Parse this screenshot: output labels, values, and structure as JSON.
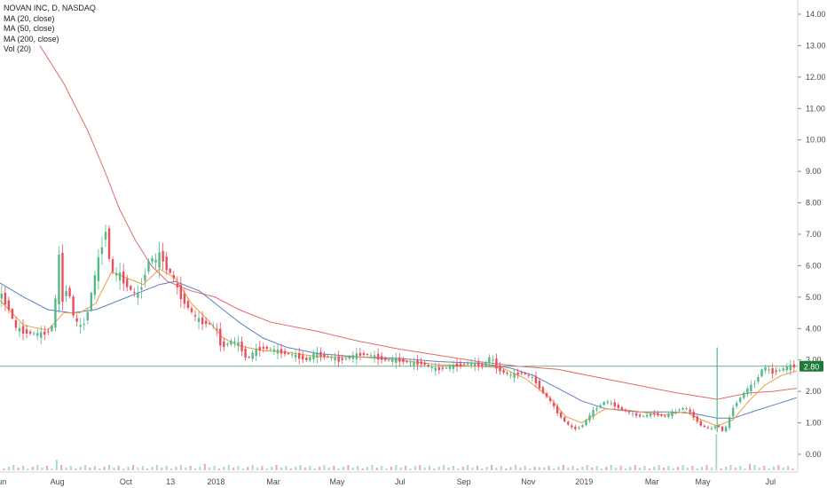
{
  "chart_data": {
    "type": "candlestick",
    "title": "NOVAN INC, D, NASDAQ",
    "indicators": [
      "MA (20, close)",
      "MA (50, close)",
      "MA (200, close)",
      "Vol (20)"
    ],
    "price_axis_ticks": [
      "14.00",
      "13.00",
      "12.00",
      "11.00",
      "10.00",
      "9.00",
      "8.00",
      "7.00",
      "6.00",
      "5.00",
      "4.00",
      "3.00",
      "2.00",
      "1.00",
      "0.00"
    ],
    "y_range": [
      0,
      14
    ],
    "time_axis_labels": [
      {
        "label": "Jun",
        "pos": 0.0
      },
      {
        "label": "Aug",
        "pos": 0.072
      },
      {
        "label": "Oct",
        "pos": 0.158
      },
      {
        "label": "13",
        "pos": 0.214
      },
      {
        "label": "2018",
        "pos": 0.271
      },
      {
        "label": "Mar",
        "pos": 0.343
      },
      {
        "label": "May",
        "pos": 0.423
      },
      {
        "label": "Jul",
        "pos": 0.502
      },
      {
        "label": "Sep",
        "pos": 0.582
      },
      {
        "label": "Nov",
        "pos": 0.663
      },
      {
        "label": "2019",
        "pos": 0.733
      },
      {
        "label": "Mar",
        "pos": 0.818
      },
      {
        "label": "May",
        "pos": 0.882
      },
      {
        "label": "Jul",
        "pos": 0.967
      }
    ],
    "last_price_label": "2.80",
    "last_price": 2.8,
    "colors": {
      "up": "#53b987",
      "down": "#eb4d5c",
      "ma20": "#f09a3e",
      "ma50": "#5f7fc4",
      "ma200": "#e06a6a",
      "last_price_bg": "#1f7a3a",
      "grid": "#e0e3eb",
      "text": "#4a4a4a"
    },
    "price_path": [
      [
        0.0,
        5.1
      ],
      [
        0.01,
        4.7
      ],
      [
        0.02,
        4.0
      ],
      [
        0.03,
        3.9
      ],
      [
        0.04,
        3.85
      ],
      [
        0.05,
        3.8
      ],
      [
        0.06,
        3.9
      ],
      [
        0.068,
        4.2
      ],
      [
        0.073,
        6.6
      ],
      [
        0.078,
        4.9
      ],
      [
        0.085,
        5.4
      ],
      [
        0.092,
        4.4
      ],
      [
        0.1,
        4.0
      ],
      [
        0.108,
        4.3
      ],
      [
        0.115,
        5.2
      ],
      [
        0.122,
        6.0
      ],
      [
        0.128,
        6.7
      ],
      [
        0.133,
        7.2
      ],
      [
        0.138,
        6.0
      ],
      [
        0.143,
        5.7
      ],
      [
        0.15,
        5.7
      ],
      [
        0.158,
        5.4
      ],
      [
        0.165,
        5.2
      ],
      [
        0.172,
        5.0
      ],
      [
        0.18,
        5.6
      ],
      [
        0.188,
        6.3
      ],
      [
        0.195,
        6.1
      ],
      [
        0.202,
        6.4
      ],
      [
        0.209,
        5.9
      ],
      [
        0.216,
        5.7
      ],
      [
        0.223,
        5.2
      ],
      [
        0.23,
        4.9
      ],
      [
        0.238,
        4.6
      ],
      [
        0.246,
        4.3
      ],
      [
        0.254,
        4.2
      ],
      [
        0.262,
        4.15
      ],
      [
        0.27,
        4.05
      ],
      [
        0.278,
        3.4
      ],
      [
        0.29,
        3.6
      ],
      [
        0.3,
        3.5
      ],
      [
        0.31,
        3.0
      ],
      [
        0.32,
        3.3
      ],
      [
        0.33,
        3.4
      ],
      [
        0.345,
        3.3
      ],
      [
        0.36,
        3.2
      ],
      [
        0.375,
        3.1
      ],
      [
        0.385,
        3.0
      ],
      [
        0.395,
        3.2
      ],
      [
        0.41,
        3.1
      ],
      [
        0.425,
        3.0
      ],
      [
        0.44,
        3.1
      ],
      [
        0.455,
        3.2
      ],
      [
        0.47,
        3.1
      ],
      [
        0.485,
        3.0
      ],
      [
        0.5,
        3.0
      ],
      [
        0.515,
        2.9
      ],
      [
        0.53,
        2.9
      ],
      [
        0.545,
        2.7
      ],
      [
        0.56,
        2.75
      ],
      [
        0.575,
        2.85
      ],
      [
        0.59,
        2.9
      ],
      [
        0.605,
        2.8
      ],
      [
        0.615,
        3.1
      ],
      [
        0.625,
        2.7
      ],
      [
        0.64,
        2.5
      ],
      [
        0.655,
        2.6
      ],
      [
        0.67,
        2.4
      ],
      [
        0.68,
        2.0
      ],
      [
        0.69,
        1.7
      ],
      [
        0.7,
        1.3
      ],
      [
        0.71,
        1.0
      ],
      [
        0.72,
        0.8
      ],
      [
        0.73,
        0.9
      ],
      [
        0.745,
        1.4
      ],
      [
        0.76,
        1.7
      ],
      [
        0.775,
        1.5
      ],
      [
        0.79,
        1.3
      ],
      [
        0.805,
        1.2
      ],
      [
        0.82,
        1.3
      ],
      [
        0.835,
        1.2
      ],
      [
        0.85,
        1.4
      ],
      [
        0.86,
        1.5
      ],
      [
        0.87,
        1.2
      ],
      [
        0.88,
        0.9
      ],
      [
        0.895,
        0.8
      ],
      [
        0.9,
        1.0
      ],
      [
        0.905,
        0.7
      ],
      [
        0.912,
        0.9
      ],
      [
        0.92,
        1.5
      ],
      [
        0.935,
        2.0
      ],
      [
        0.948,
        2.3
      ],
      [
        0.958,
        2.8
      ],
      [
        0.968,
        2.6
      ],
      [
        0.98,
        2.7
      ],
      [
        0.993,
        2.8
      ],
      [
        1.0,
        2.8
      ]
    ],
    "ma20_path": [
      [
        0.0,
        4.9
      ],
      [
        0.03,
        4.1
      ],
      [
        0.06,
        3.95
      ],
      [
        0.08,
        4.5
      ],
      [
        0.1,
        4.5
      ],
      [
        0.12,
        4.8
      ],
      [
        0.14,
        5.8
      ],
      [
        0.16,
        5.6
      ],
      [
        0.18,
        5.4
      ],
      [
        0.2,
        5.9
      ],
      [
        0.22,
        5.6
      ],
      [
        0.24,
        4.8
      ],
      [
        0.26,
        4.3
      ],
      [
        0.28,
        3.7
      ],
      [
        0.3,
        3.45
      ],
      [
        0.33,
        3.3
      ],
      [
        0.36,
        3.25
      ],
      [
        0.4,
        3.1
      ],
      [
        0.45,
        3.1
      ],
      [
        0.5,
        3.0
      ],
      [
        0.55,
        2.85
      ],
      [
        0.6,
        2.8
      ],
      [
        0.63,
        2.75
      ],
      [
        0.66,
        2.4
      ],
      [
        0.69,
        1.8
      ],
      [
        0.71,
        1.2
      ],
      [
        0.73,
        1.0
      ],
      [
        0.76,
        1.45
      ],
      [
        0.79,
        1.4
      ],
      [
        0.83,
        1.25
      ],
      [
        0.86,
        1.35
      ],
      [
        0.88,
        1.1
      ],
      [
        0.9,
        0.9
      ],
      [
        0.92,
        1.1
      ],
      [
        0.94,
        1.7
      ],
      [
        0.96,
        2.2
      ],
      [
        0.98,
        2.5
      ],
      [
        1.0,
        2.65
      ]
    ],
    "ma50_path": [
      [
        0.0,
        5.45
      ],
      [
        0.03,
        5.0
      ],
      [
        0.06,
        4.6
      ],
      [
        0.09,
        4.5
      ],
      [
        0.12,
        4.6
      ],
      [
        0.15,
        4.9
      ],
      [
        0.18,
        5.2
      ],
      [
        0.2,
        5.4
      ],
      [
        0.22,
        5.5
      ],
      [
        0.25,
        5.2
      ],
      [
        0.27,
        4.8
      ],
      [
        0.3,
        4.2
      ],
      [
        0.33,
        3.7
      ],
      [
        0.36,
        3.4
      ],
      [
        0.4,
        3.2
      ],
      [
        0.45,
        3.1
      ],
      [
        0.5,
        3.05
      ],
      [
        0.55,
        2.95
      ],
      [
        0.6,
        2.9
      ],
      [
        0.64,
        2.75
      ],
      [
        0.67,
        2.5
      ],
      [
        0.7,
        2.1
      ],
      [
        0.73,
        1.7
      ],
      [
        0.76,
        1.45
      ],
      [
        0.8,
        1.35
      ],
      [
        0.84,
        1.35
      ],
      [
        0.87,
        1.3
      ],
      [
        0.9,
        1.15
      ],
      [
        0.92,
        1.15
      ],
      [
        0.95,
        1.4
      ],
      [
        0.975,
        1.6
      ],
      [
        1.0,
        1.8
      ]
    ],
    "ma200_path": [
      [
        0.05,
        13.0
      ],
      [
        0.08,
        11.8
      ],
      [
        0.11,
        10.3
      ],
      [
        0.13,
        9.1
      ],
      [
        0.15,
        7.8
      ],
      [
        0.17,
        6.8
      ],
      [
        0.19,
        6.0
      ],
      [
        0.21,
        5.5
      ],
      [
        0.24,
        5.2
      ],
      [
        0.27,
        5.0
      ],
      [
        0.3,
        4.6
      ],
      [
        0.34,
        4.2
      ],
      [
        0.4,
        3.9
      ],
      [
        0.45,
        3.6
      ],
      [
        0.5,
        3.35
      ],
      [
        0.55,
        3.15
      ],
      [
        0.6,
        2.95
      ],
      [
        0.65,
        2.8
      ],
      [
        0.7,
        2.7
      ],
      [
        0.75,
        2.45
      ],
      [
        0.8,
        2.2
      ],
      [
        0.85,
        1.95
      ],
      [
        0.9,
        1.75
      ],
      [
        0.94,
        1.95
      ],
      [
        0.97,
        2.0
      ],
      [
        1.0,
        2.1
      ]
    ],
    "volume_path": [
      [
        0.073,
        1.0
      ],
      [
        0.26,
        0.6
      ],
      [
        0.52,
        0.4
      ],
      [
        0.68,
        0.3
      ],
      [
        0.9,
        3.4
      ],
      [
        0.94,
        0.6
      ]
    ]
  }
}
